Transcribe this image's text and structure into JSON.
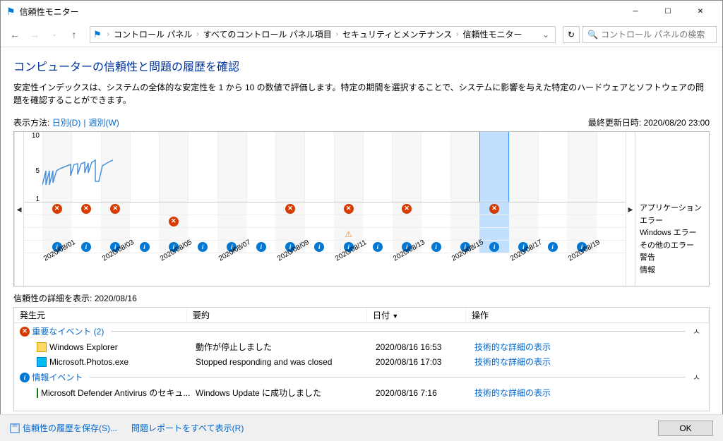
{
  "window": {
    "title": "信頼性モニター"
  },
  "navbar": {
    "breadcrumbs": [
      "コントロール パネル",
      "すべてのコントロール パネル項目",
      "セキュリティとメンテナンス",
      "信頼性モニター"
    ],
    "search_placeholder": "コントロール パネルの検索"
  },
  "page": {
    "title": "コンピューターの信頼性と問題の履歴を確認",
    "description": "安定性インデックスは、システムの全体的な安定性を 1 から 10 の数値で評価します。特定の期間を選択することで、システムに影響を与えた特定のハードウェアとソフトウェアの問題を確認することができます。"
  },
  "view": {
    "label": "表示方法:",
    "daily": "日別(D)",
    "weekly": "週別(W)",
    "last_updated_label": "最終更新日時:",
    "last_updated_value": "2020/08/20 23:00"
  },
  "chart": {
    "y_ticks": [
      {
        "v": 10,
        "y": 0
      },
      {
        "v": 5,
        "y": 50
      },
      {
        "v": 1,
        "y": 90
      }
    ],
    "legend": [
      "アプリケーション エラー",
      "Windows エラー",
      "その他のエラー",
      "警告",
      "情報"
    ],
    "columns": [
      {
        "date": "2020/08/01",
        "idx": 4,
        "err": {
          "app": true,
          "info": true
        }
      },
      {
        "date": "",
        "idx": 4,
        "err": {
          "app": true,
          "info": true
        }
      },
      {
        "date": "2020/08/03",
        "idx": 4,
        "err": {
          "app": true,
          "info": true
        }
      },
      {
        "date": "",
        "idx": 4,
        "err": {
          "info": true
        }
      },
      {
        "date": "2020/08/05",
        "idx": 4,
        "err": {
          "other": true,
          "info": true
        }
      },
      {
        "date": "",
        "idx": 4,
        "err": {
          "info": true
        }
      },
      {
        "date": "2020/08/07",
        "idx": 5,
        "err": {
          "info": true
        }
      },
      {
        "date": "",
        "idx": 5,
        "err": {
          "info": true
        }
      },
      {
        "date": "2020/08/09",
        "idx": 5,
        "err": {
          "app": true,
          "info": true
        }
      },
      {
        "date": "",
        "idx": 5,
        "err": {
          "info": true
        }
      },
      {
        "date": "2020/08/11",
        "idx": 5,
        "err": {
          "app": true,
          "warn": true,
          "info": true
        }
      },
      {
        "date": "",
        "idx": 5,
        "err": {
          "info": true
        }
      },
      {
        "date": "2020/08/13",
        "idx": 5,
        "err": {
          "app": true,
          "info": true
        }
      },
      {
        "date": "",
        "idx": 5,
        "err": {
          "info": true
        }
      },
      {
        "date": "2020/08/15",
        "idx": 5,
        "err": {
          "info": true
        }
      },
      {
        "date": "",
        "idx": 5,
        "selected": true,
        "err": {
          "app": true,
          "info": true
        }
      },
      {
        "date": "2020/08/17",
        "idx": 3,
        "err": {
          "info": true
        }
      },
      {
        "date": "",
        "idx": 4,
        "err": {
          "info": true
        }
      },
      {
        "date": "2020/08/19",
        "idx": 4,
        "err": {
          "info": true
        }
      },
      {
        "date": "",
        "idx": 4,
        "err": {}
      }
    ],
    "line_points": [
      [
        0,
        75
      ],
      [
        5,
        55
      ],
      [
        5,
        75
      ],
      [
        10,
        55
      ],
      [
        10,
        75
      ],
      [
        15,
        55
      ],
      [
        15,
        72
      ],
      [
        20,
        55
      ],
      [
        25,
        52
      ],
      [
        30,
        50
      ],
      [
        35,
        48
      ],
      [
        40,
        46
      ],
      [
        40,
        62
      ],
      [
        45,
        46
      ],
      [
        50,
        45
      ],
      [
        50,
        60
      ],
      [
        55,
        45
      ],
      [
        60,
        43
      ],
      [
        60,
        58
      ],
      [
        65,
        44
      ],
      [
        65,
        58
      ],
      [
        70,
        43
      ],
      [
        75,
        40
      ],
      [
        75,
        70
      ],
      [
        80,
        70
      ],
      [
        85,
        48
      ],
      [
        90,
        45
      ],
      [
        95,
        42
      ],
      [
        100,
        40
      ]
    ],
    "line_color": "#4a90d9",
    "line_width": 1.5
  },
  "details": {
    "header_prefix": "信頼性の詳細を表示:",
    "header_date": "2020/08/16",
    "columns": {
      "source": "発生元",
      "summary": "要約",
      "date": "日付",
      "action": "操作"
    },
    "groups": [
      {
        "title": "重要なイベント (2)",
        "icon": "error",
        "rows": [
          {
            "icon": "explorer",
            "source": "Windows Explorer",
            "summary": "動作が停止しました",
            "date": "2020/08/16 16:53",
            "action": "技術的な詳細の表示"
          },
          {
            "icon": "photos",
            "source": "Microsoft.Photos.exe",
            "summary": "Stopped responding and was closed",
            "date": "2020/08/16 17:03",
            "action": "技術的な詳細の表示"
          }
        ]
      },
      {
        "title": "情報イベント",
        "icon": "info",
        "rows": [
          {
            "icon": "defender",
            "source": "Microsoft Defender Antivirus のセキュ...",
            "summary": "Windows Update に成功しました",
            "date": "2020/08/16 7:16",
            "action": "技術的な詳細の表示"
          }
        ]
      }
    ]
  },
  "footer": {
    "save": "信頼性の履歴を保存(S)...",
    "view_reports": "問題レポートをすべて表示(R)",
    "ok": "OK"
  }
}
